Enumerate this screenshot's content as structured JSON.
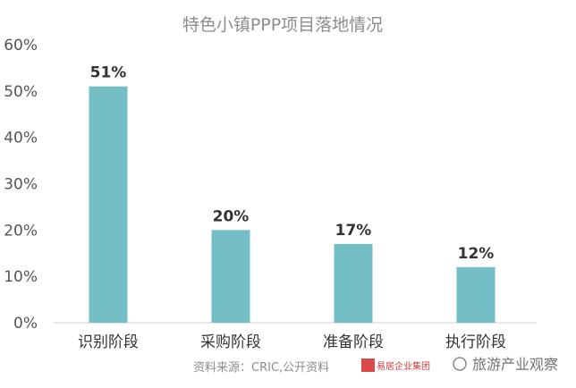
{
  "chart_data": {
    "type": "bar",
    "title": "特色小镇PPP项目落地情况",
    "categories": [
      "识别阶段",
      "采购阶段",
      "准备阶段",
      "执行阶段"
    ],
    "values": [
      51,
      20,
      17,
      12
    ],
    "value_labels": [
      "51%",
      "20%",
      "17%",
      "12%"
    ],
    "y_ticks": [
      "0%",
      "10%",
      "20%",
      "30%",
      "40%",
      "50%",
      "60%"
    ],
    "ylim": [
      0,
      60
    ],
    "xlabel": "",
    "ylabel": "",
    "grid": false,
    "bar_color": "#74bec6"
  },
  "footer": {
    "source": "资料来源：CRIC,公开资料",
    "logo_text": "易居企业集团",
    "watermark": "旅游产业观察"
  }
}
